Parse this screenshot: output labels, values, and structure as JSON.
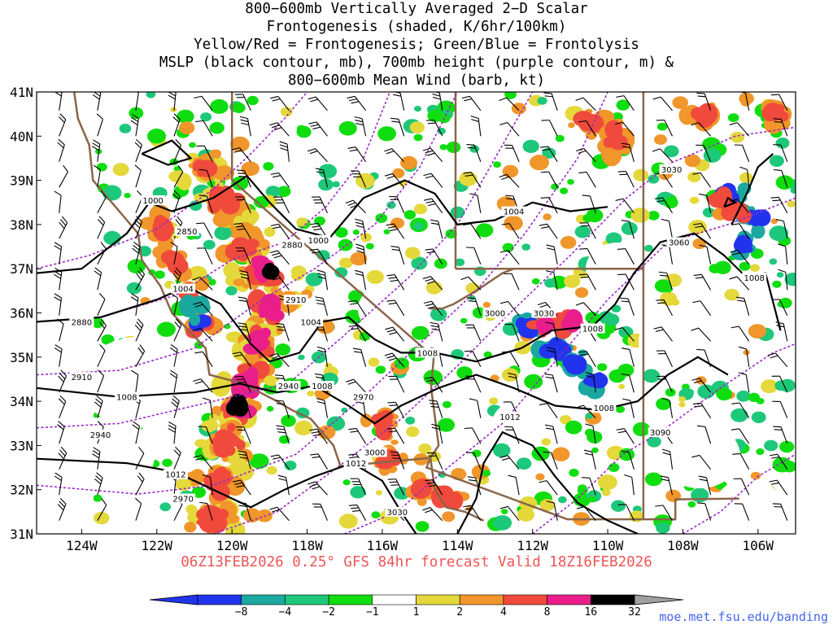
{
  "title_lines": [
    "800−600mb Vertically Averaged 2−D Scalar",
    "Frontogenesis (shaded, K/6hr/100km)",
    "Yellow/Red = Frontogenesis;  Green/Blue = Frontolysis",
    "MSLP (black contour, mb), 700mb height (purple contour, m) &",
    "800−600mb Mean Wind (barb, kt)"
  ],
  "valid_text": "06Z13FEB2026 0.25° GFS 84hr forecast Valid 18Z16FEB2026",
  "credit": "moe.met.fsu.edu/banding",
  "axes": {
    "lat_labels": [
      "41N",
      "40N",
      "39N",
      "38N",
      "37N",
      "36N",
      "35N",
      "34N",
      "33N",
      "32N",
      "31N"
    ],
    "lon_labels": [
      "124W",
      "122W",
      "120W",
      "118W",
      "116W",
      "114W",
      "112W",
      "110W",
      "108W",
      "106W"
    ],
    "lat_range": [
      31,
      41
    ],
    "lon_range": [
      -125.2,
      -105
    ]
  },
  "mslp_contour_labels": [
    {
      "text": "1000",
      "lon": -122.1,
      "lat": 38.55
    },
    {
      "text": "1000",
      "lon": -117.7,
      "lat": 37.65
    },
    {
      "text": "1004",
      "lon": -112.5,
      "lat": 38.3
    },
    {
      "text": "1004",
      "lon": -121.3,
      "lat": 36.55
    },
    {
      "text": "1004",
      "lon": -117.9,
      "lat": 35.8
    },
    {
      "text": "1008",
      "lon": -114.8,
      "lat": 35.1
    },
    {
      "text": "1008",
      "lon": -117.6,
      "lat": 34.35
    },
    {
      "text": "1008",
      "lon": -110.4,
      "lat": 35.65
    },
    {
      "text": "1008",
      "lon": -122.8,
      "lat": 34.1
    },
    {
      "text": "1008",
      "lon": -110.1,
      "lat": 33.85
    },
    {
      "text": "1008",
      "lon": -106.1,
      "lat": 36.8
    },
    {
      "text": "1012",
      "lon": -112.6,
      "lat": 33.65
    },
    {
      "text": "1012",
      "lon": -116.7,
      "lat": 32.6
    },
    {
      "text": "1012",
      "lon": -121.5,
      "lat": 32.35
    }
  ],
  "height_contour_labels": [
    {
      "text": "2850",
      "lon": -121.2,
      "lat": 37.85
    },
    {
      "text": "2880",
      "lon": -118.4,
      "lat": 37.55
    },
    {
      "text": "2880",
      "lon": -124.0,
      "lat": 35.8
    },
    {
      "text": "2910",
      "lon": -118.3,
      "lat": 36.3
    },
    {
      "text": "2910",
      "lon": -124.0,
      "lat": 34.55
    },
    {
      "text": "2940",
      "lon": -118.5,
      "lat": 34.35
    },
    {
      "text": "2940",
      "lon": -123.5,
      "lat": 33.25
    },
    {
      "text": "2970",
      "lon": -116.5,
      "lat": 34.1
    },
    {
      "text": "2970",
      "lon": -121.3,
      "lat": 31.8
    },
    {
      "text": "3000",
      "lon": -113.0,
      "lat": 36.0
    },
    {
      "text": "3000",
      "lon": -116.2,
      "lat": 32.85
    },
    {
      "text": "3030",
      "lon": -111.7,
      "lat": 36.0
    },
    {
      "text": "3030",
      "lon": -115.6,
      "lat": 31.5
    },
    {
      "text": "3030",
      "lon": -108.3,
      "lat": 39.25
    },
    {
      "text": "3060",
      "lon": -108.1,
      "lat": 37.6
    },
    {
      "text": "3090",
      "lon": -108.6,
      "lat": 33.3
    }
  ],
  "colorbar": {
    "labels": [
      "−8",
      "−4",
      "−2",
      "−1",
      "1",
      "2",
      "4",
      "8",
      "16",
      "32"
    ],
    "colors": [
      "#2233ee",
      "#1ba8a0",
      "#1ec87a",
      "#10dd10",
      "#ffffff",
      "#e4d83a",
      "#f0962a",
      "#f04a3c",
      "#ea1e8a",
      "#000000"
    ],
    "ends": {
      "low": "#2233ee",
      "high": "#a0a0a0"
    }
  },
  "contour_colors": {
    "mslp": "#000000",
    "height": "#9b28c8",
    "borders": "#8b6549"
  }
}
